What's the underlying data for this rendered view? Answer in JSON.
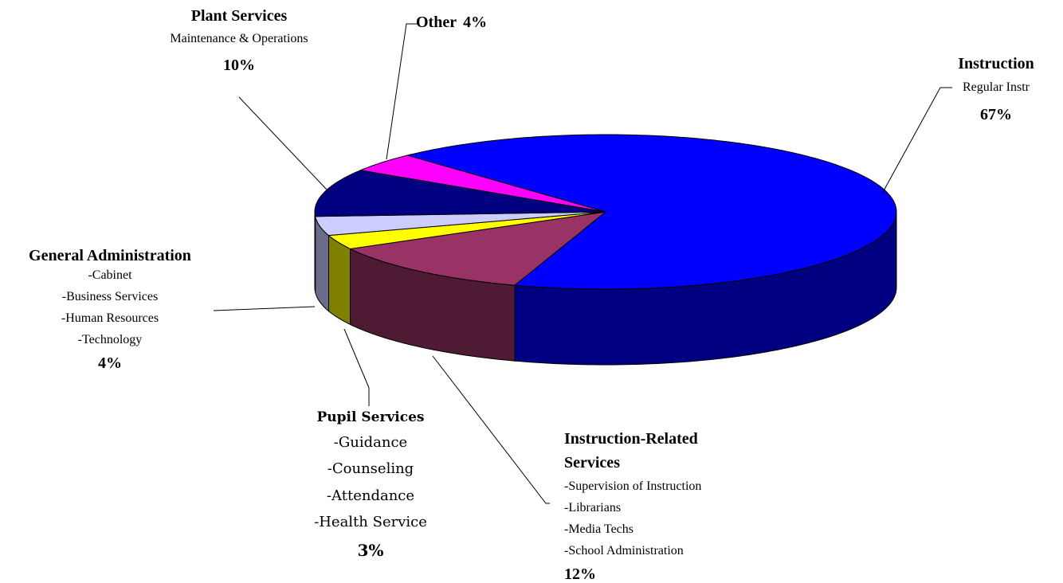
{
  "chart_data": {
    "type": "pie3d",
    "categories": [
      "Instruction",
      "Instruction-Related Services",
      "Pupil Services",
      "General Administration",
      "Plant Services",
      "Other"
    ],
    "values": [
      67,
      12,
      3,
      4,
      10,
      4
    ],
    "value_labels": [
      "67%",
      "12%",
      "3%",
      "4%",
      "10%",
      "4%"
    ],
    "details": [
      [
        "Regular Instr"
      ],
      [
        "-Supervision of Instruction",
        "-Librarians",
        "-Media Techs",
        "-School Administration"
      ],
      [
        "-Guidance",
        "-Counseling",
        "-Attendance",
        "-Health Service"
      ],
      [
        "-Cabinet",
        "-Business Services",
        "-Human Resources",
        "-Technology"
      ],
      [
        "Maintenance & Operations"
      ],
      []
    ],
    "colors": [
      "#0000ff",
      "#993366",
      "#ffff00",
      "#ccccff",
      "#000080",
      "#ff00ff"
    ],
    "side_colors": [
      "#000080",
      "#4f1a33",
      "#808000",
      "#6b6b8a",
      "#000040",
      "#800080"
    ]
  }
}
